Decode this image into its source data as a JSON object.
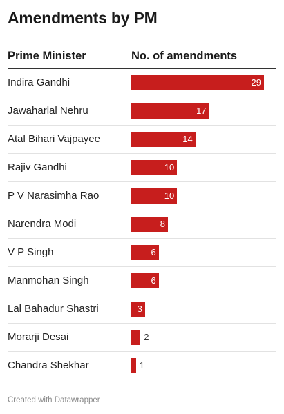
{
  "header": {
    "title": "Amendments by PM"
  },
  "table": {
    "label_header": "Prime Minister",
    "value_header": "No. of amendments"
  },
  "colors": {
    "bar": "#c71e1d"
  },
  "chart_data": {
    "type": "bar",
    "orientation": "horizontal",
    "title": "Amendments by PM",
    "xlabel": "No. of amendments",
    "ylabel": "Prime Minister",
    "xlim": [
      0,
      29
    ],
    "grid": false,
    "categories": [
      "Indira Gandhi",
      "Jawaharlal Nehru",
      "Atal Bihari Vajpayee",
      "Rajiv Gandhi",
      "P V Narasimha Rao",
      "Narendra Modi",
      "V P Singh",
      "Manmohan Singh",
      "Lal Bahadur Shastri",
      "Morarji Desai",
      "Chandra Shekhar"
    ],
    "values": [
      29,
      17,
      14,
      10,
      10,
      8,
      6,
      6,
      3,
      2,
      1
    ]
  },
  "footer": {
    "credit": "Created with Datawrapper"
  }
}
